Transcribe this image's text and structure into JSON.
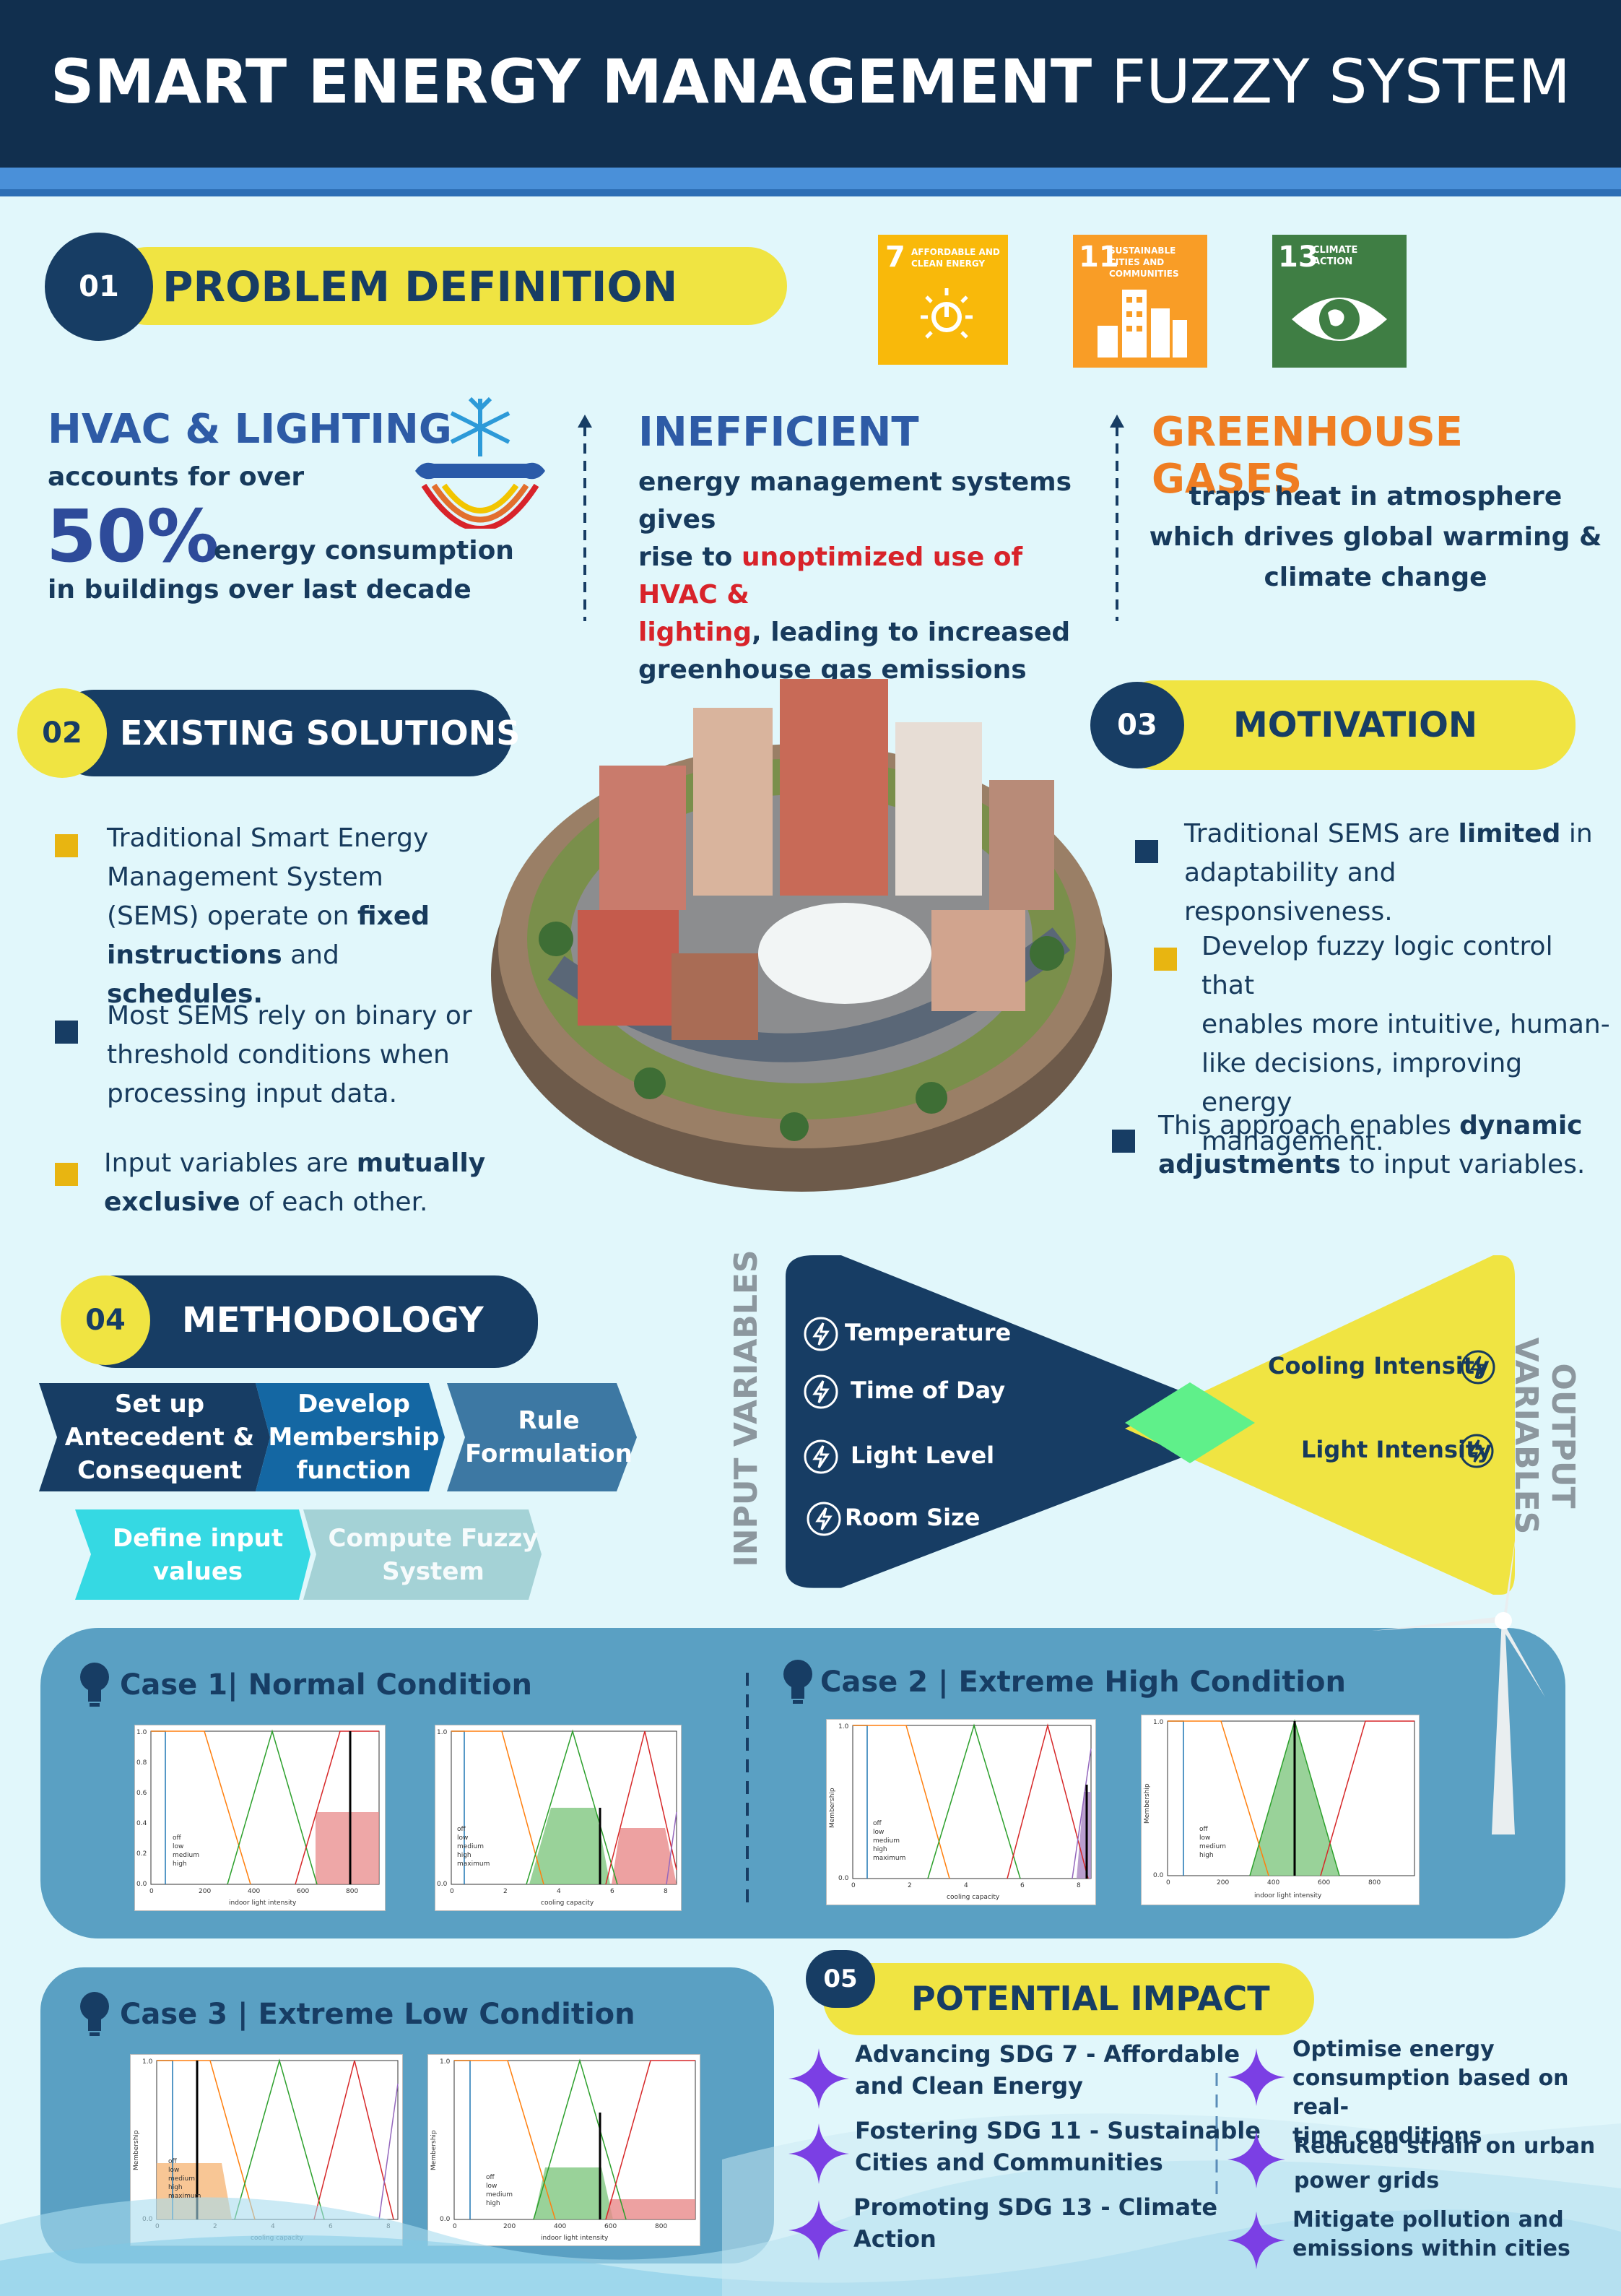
{
  "header": {
    "title_bold": "SMART ENERGY MANAGEMENT",
    "title_light": " FUZZY SYSTEM"
  },
  "problem": {
    "number": "01",
    "title": "PROBLEM DEFINITION",
    "sdgs": [
      {
        "num": "7",
        "label": "AFFORDABLE AND CLEAN ENERGY",
        "color": "#f9b90a"
      },
      {
        "num": "11",
        "label": "SUSTAINABLE CITIES AND COMMUNITIES",
        "color": "#f99d26"
      },
      {
        "num": "13",
        "label": "CLIMATE ACTION",
        "color": "#3f7e44"
      }
    ],
    "col1": {
      "heading": "HVAC & LIGHTING",
      "line1": "accounts for over",
      "big": "50%",
      "line2": "energy consumption",
      "line3": "in buildings over last decade"
    },
    "col2": {
      "heading": "INEFFICIENT",
      "t1": "energy management systems gives",
      "t2": "rise to ",
      "r1": "unoptimized use of HVAC &",
      "r2": "lighting",
      "t3": ", leading to increased",
      "t4": "greenhouse gas emissions"
    },
    "col3": {
      "heading": "GREENHOUSE GASES",
      "l1": "traps heat in atmosphere",
      "l2": "which drives global warming &",
      "l3": "climate change"
    }
  },
  "existing": {
    "number": "02",
    "title": "EXISTING SOLUTIONS",
    "b1": {
      "l1": "Traditional Smart Energy",
      "l2": "Management System",
      "l3a": "(SEMS) operate on ",
      "l3b": "fixed",
      "l4a": "instructions",
      "l4b": " and ",
      "l4c": "schedules."
    },
    "b2": {
      "l1": "Most SEMS rely on binary or",
      "l2": "threshold conditions when",
      "l3": "processing input data."
    },
    "b3": {
      "l1a": "Input variables are ",
      "l1b": "mutually",
      "l2a": "exclusive",
      "l2b": " of each other."
    }
  },
  "motivation": {
    "number": "03",
    "title": "MOTIVATION",
    "b1": {
      "l1a": "Traditional SEMS are ",
      "l1b": "limited",
      "l1c": " in",
      "l2": "adaptability and responsiveness."
    },
    "b2": {
      "l1": "Develop fuzzy logic control that",
      "l2": "enables more intuitive, human-",
      "l3": "like decisions, improving energy",
      "l4": "management."
    },
    "b3": {
      "l1a": "This approach enables ",
      "l1b": "dynamic",
      "l2a": "adjustments",
      "l2b": " to input variables."
    }
  },
  "methodology": {
    "number": "04",
    "title": "METHODOLOGY",
    "steps": [
      {
        "label": "Set up Antecedent & Consequent",
        "color": "#173d64"
      },
      {
        "label": "Develop Membership function",
        "color": "#1467a3"
      },
      {
        "label": "Rule Formulation",
        "color": "#3d78a3"
      },
      {
        "label": "Define input values",
        "color": "#35d9e3"
      },
      {
        "label": "Compute Fuzzy System",
        "color": "#a4d2d6"
      }
    ],
    "input_title": "INPUT VARIABLES",
    "output_title": "OUTPUT VARIABLES",
    "inputs": [
      "Temperature",
      "Time of Day",
      "Light Level",
      "Room Size"
    ],
    "outputs": [
      "Cooling Intensity",
      "Light Intensity"
    ]
  },
  "cases": {
    "case1": {
      "title": "Case 1| Normal Condition"
    },
    "case2": {
      "title": "Case 2 | Extreme High Condition"
    },
    "case3": {
      "title": "Case 3 | Extreme Low Condition"
    },
    "axis_light": "indoor light intensity",
    "axis_cooling": "cooling capacity",
    "membership": "Membership",
    "legend4": [
      "off",
      "low",
      "medium",
      "high"
    ],
    "legend5": [
      "off",
      "low",
      "medium",
      "high",
      "maximum"
    ],
    "ticks_light": [
      "0",
      "200",
      "400",
      "600",
      "800"
    ],
    "ticks_cool": [
      "0",
      "2",
      "4",
      "6",
      "8"
    ],
    "ticks_y": [
      "1.0",
      "0.8",
      "0.6",
      "0.4",
      "0.2",
      "0.0"
    ]
  },
  "impact": {
    "number": "05",
    "title": "POTENTIAL IMPACT",
    "left": [
      {
        "l1": "Advancing SDG 7 - Affordable",
        "l2": "and Clean Energy"
      },
      {
        "l1": "Fostering SDG 11 -  Sustainable",
        "l2": "Cities and Communities"
      },
      {
        "l1": "Promoting SDG 13 - Climate",
        "l2": "Action"
      }
    ],
    "right": [
      {
        "l1": "Optimise energy",
        "l2": "consumption based on real-",
        "l3": "time conditions"
      },
      {
        "l1": "Reduced strain on urban",
        "l2": "power grids"
      },
      {
        "l1": "Mitigate pollution and",
        "l2": "emissions within cities"
      }
    ]
  }
}
